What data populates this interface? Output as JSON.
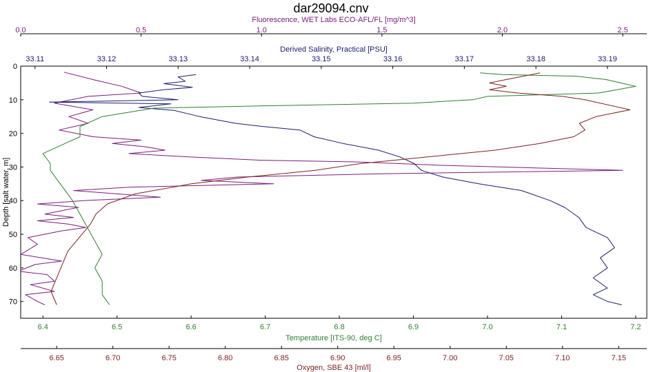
{
  "chart_data": {
    "type": "line",
    "title": "dar29094.cnv",
    "y_axis": {
      "label": "Depth [salt water, m]",
      "range": [
        0,
        75
      ],
      "reversed": true,
      "ticks": [
        0,
        10,
        20,
        30,
        40,
        50,
        60,
        70
      ],
      "color": "#000000"
    },
    "x_axes": [
      {
        "id": "fluorescence",
        "label": "Fluorescence, WET Labs ECO-AFL/FL [mg/m^3]",
        "position": "top-outer",
        "color": "#7a1a7a",
        "range": [
          0.0,
          2.6
        ],
        "ticks": [
          0.0,
          0.5,
          1.0,
          1.5,
          2.0,
          2.5
        ],
        "tick_labels": [
          "0.0",
          "0.5",
          "1.0",
          "1.5",
          "2.0",
          "2.5"
        ]
      },
      {
        "id": "salinity",
        "label": "Derived Salinity, Practical [PSU]",
        "position": "top-inner",
        "color": "#1a1a6e",
        "range": [
          33.108,
          33.1955
        ],
        "ticks": [
          33.11,
          33.12,
          33.13,
          33.14,
          33.15,
          33.16,
          33.17,
          33.18,
          33.19
        ],
        "tick_labels": [
          "33.11",
          "33.12",
          "33.13",
          "33.14",
          "33.15",
          "33.16",
          "33.17",
          "33.18",
          "33.19"
        ]
      },
      {
        "id": "temperature",
        "label": "Temperature [ITS-90, deg C]",
        "position": "bottom-inner",
        "color": "#2e7d2e",
        "range": [
          6.37,
          7.215
        ],
        "ticks": [
          6.4,
          6.5,
          6.6,
          6.7,
          6.8,
          6.9,
          7.0,
          7.1,
          7.2
        ],
        "tick_labels": [
          "6.4",
          "6.5",
          "6.6",
          "6.7",
          "6.8",
          "6.9",
          "7.0",
          "7.1",
          "7.2"
        ]
      },
      {
        "id": "oxygen",
        "label": "Oxygen, SBE 43 [ml/l]",
        "position": "bottom-outer",
        "color": "#7a1f1f",
        "range": [
          6.618,
          7.175
        ],
        "ticks": [
          6.65,
          6.7,
          6.75,
          6.8,
          6.85,
          6.9,
          6.95,
          7.0,
          7.05,
          7.1,
          7.15
        ],
        "tick_labels": [
          "6.65",
          "6.70",
          "6.75",
          "6.80",
          "6.85",
          "6.90",
          "6.95",
          "7.00",
          "7.05",
          "7.10",
          "7.15"
        ]
      }
    ],
    "series": [
      {
        "name": "Fluorescence",
        "axis": "fluorescence",
        "color": "#7a1a7a",
        "points": [
          [
            0.18,
            1.8
          ],
          [
            0.3,
            4
          ],
          [
            0.42,
            6
          ],
          [
            0.5,
            8
          ],
          [
            0.28,
            9
          ],
          [
            0.14,
            11
          ],
          [
            0.3,
            13
          ],
          [
            0.2,
            15
          ],
          [
            0.28,
            17
          ],
          [
            0.16,
            19
          ],
          [
            0.3,
            21
          ],
          [
            0.5,
            22
          ],
          [
            0.38,
            23
          ],
          [
            0.52,
            24
          ],
          [
            0.6,
            25
          ],
          [
            0.45,
            26
          ],
          [
            0.7,
            27
          ],
          [
            1.0,
            28
          ],
          [
            1.4,
            28.5
          ],
          [
            1.75,
            29.5
          ],
          [
            2.5,
            31
          ],
          [
            1.5,
            32
          ],
          [
            0.9,
            33
          ],
          [
            0.75,
            34
          ],
          [
            1.05,
            35
          ],
          [
            0.45,
            36
          ],
          [
            0.22,
            37
          ],
          [
            0.4,
            38
          ],
          [
            0.58,
            39
          ],
          [
            0.26,
            40
          ],
          [
            0.07,
            41
          ],
          [
            0.24,
            42
          ],
          [
            0.1,
            44
          ],
          [
            0.22,
            45
          ],
          [
            0.07,
            46
          ],
          [
            0.2,
            47
          ],
          [
            0.27,
            48
          ],
          [
            0.17,
            49
          ],
          [
            0.03,
            51
          ],
          [
            0.07,
            53
          ],
          [
            0.0,
            56
          ],
          [
            0.17,
            58
          ],
          [
            0.06,
            59
          ],
          [
            -0.01,
            61
          ],
          [
            0.11,
            62
          ],
          [
            0.14,
            64
          ],
          [
            0.04,
            65
          ],
          [
            0.14,
            67
          ],
          [
            0.02,
            68
          ],
          [
            0.07,
            70
          ],
          [
            0.1,
            71
          ]
        ]
      },
      {
        "name": "Salinity",
        "axis": "salinity",
        "color": "#1a1a6e",
        "points": [
          [
            33.1325,
            2.5
          ],
          [
            33.13,
            3.2
          ],
          [
            33.131,
            4.5
          ],
          [
            33.128,
            5.2
          ],
          [
            33.132,
            6.3
          ],
          [
            33.128,
            7
          ],
          [
            33.1245,
            8
          ],
          [
            33.125,
            9
          ],
          [
            33.13,
            10
          ],
          [
            33.112,
            10.7
          ],
          [
            33.129,
            11.2
          ],
          [
            33.1245,
            12.3
          ],
          [
            33.1295,
            13.2
          ],
          [
            33.133,
            15
          ],
          [
            33.138,
            17
          ],
          [
            33.142,
            18
          ],
          [
            33.147,
            19
          ],
          [
            33.149,
            21
          ],
          [
            33.153,
            23
          ],
          [
            33.158,
            25
          ],
          [
            33.161,
            27
          ],
          [
            33.163,
            29
          ],
          [
            33.164,
            31
          ],
          [
            33.167,
            33
          ],
          [
            33.172,
            35
          ],
          [
            33.178,
            37
          ],
          [
            33.182,
            40
          ],
          [
            33.184,
            42
          ],
          [
            33.186,
            45
          ],
          [
            33.187,
            48
          ],
          [
            33.19,
            51
          ],
          [
            33.191,
            54
          ],
          [
            33.189,
            57
          ],
          [
            33.19,
            60
          ],
          [
            33.188,
            63
          ],
          [
            33.19,
            66
          ],
          [
            33.188,
            68
          ],
          [
            33.19,
            70
          ],
          [
            33.192,
            71
          ]
        ]
      },
      {
        "name": "Temperature",
        "axis": "temperature",
        "color": "#2e7d2e",
        "points": [
          [
            6.99,
            2
          ],
          [
            7.02,
            2.5
          ],
          [
            7.12,
            3
          ],
          [
            7.16,
            4
          ],
          [
            7.2,
            6
          ],
          [
            7.15,
            8
          ],
          [
            7.0,
            9
          ],
          [
            6.98,
            10
          ],
          [
            6.9,
            11
          ],
          [
            6.7,
            11.8
          ],
          [
            6.55,
            12.5
          ],
          [
            6.48,
            15
          ],
          [
            6.45,
            18
          ],
          [
            6.45,
            21
          ],
          [
            6.43,
            23
          ],
          [
            6.4,
            26
          ],
          [
            6.41,
            29
          ],
          [
            6.41,
            31
          ],
          [
            6.42,
            34
          ],
          [
            6.43,
            37
          ],
          [
            6.44,
            40
          ],
          [
            6.45,
            44
          ],
          [
            6.46,
            48
          ],
          [
            6.47,
            52
          ],
          [
            6.48,
            56
          ],
          [
            6.47,
            60
          ],
          [
            6.48,
            64
          ],
          [
            6.48,
            68
          ],
          [
            6.49,
            71
          ]
        ]
      },
      {
        "name": "Oxygen",
        "axis": "oxygen",
        "color": "#7a1f1f",
        "points": [
          [
            7.08,
            2
          ],
          [
            7.065,
            3
          ],
          [
            7.05,
            4
          ],
          [
            7.035,
            5
          ],
          [
            7.05,
            6
          ],
          [
            7.035,
            7
          ],
          [
            7.06,
            8
          ],
          [
            7.1,
            9
          ],
          [
            7.12,
            10
          ],
          [
            7.16,
            13
          ],
          [
            7.13,
            15
          ],
          [
            7.115,
            17
          ],
          [
            7.12,
            19
          ],
          [
            7.11,
            21
          ],
          [
            7.08,
            23
          ],
          [
            7.04,
            25
          ],
          [
            6.98,
            27
          ],
          [
            6.92,
            29
          ],
          [
            6.88,
            31
          ],
          [
            6.82,
            33
          ],
          [
            6.77,
            35
          ],
          [
            6.72,
            38
          ],
          [
            6.695,
            41
          ],
          [
            6.685,
            44
          ],
          [
            6.68,
            47
          ],
          [
            6.67,
            51
          ],
          [
            6.66,
            55
          ],
          [
            6.655,
            59
          ],
          [
            6.65,
            63
          ],
          [
            6.645,
            67
          ],
          [
            6.65,
            71
          ]
        ]
      }
    ],
    "grid": false,
    "legend": "none"
  }
}
